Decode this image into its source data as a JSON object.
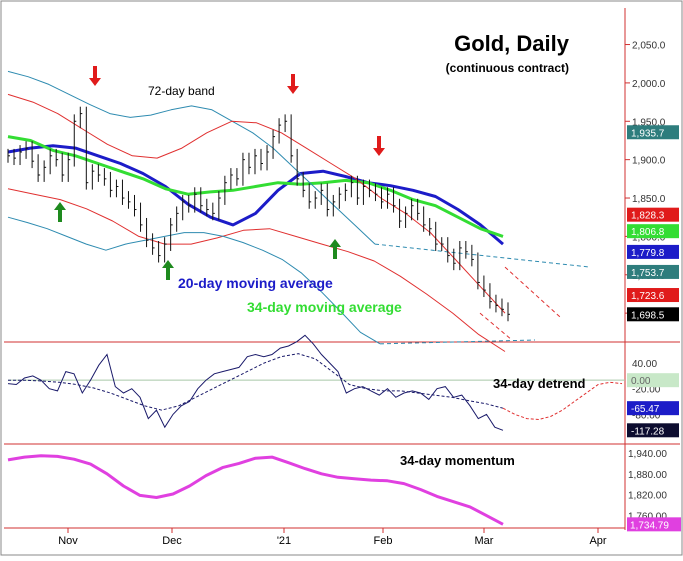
{
  "title": "Gold, Daily",
  "subtitle": "(continuous contract)",
  "colors": {
    "band_outer": "#2e8bb0",
    "band_inner": "#e03030",
    "ma20": "#1c1cc8",
    "ma34": "#33dd33",
    "price": "#111111",
    "momentum": "#e040e0",
    "arrow_down": "#e01b1b",
    "arrow_up": "#1e8a1e",
    "axis": "#d03030"
  },
  "chart_data": [
    {
      "type": "line",
      "panel": "price",
      "x_tick_labels": [
        "Nov",
        "Dec",
        "'21",
        "Feb",
        "Mar",
        "Apr"
      ],
      "y_ticks": [
        2050,
        2000,
        1950,
        1900,
        1850,
        1800,
        1750,
        1700
      ],
      "y_tick_labels": [
        "2,050.0",
        "2,000.0",
        "1,950.0",
        "1,900.0",
        "1,850.0",
        "1,800.0",
        "1,750.0",
        "1,700.0"
      ],
      "ylim": [
        1665,
        2095
      ],
      "annotations": [
        "72-day band",
        "20-day moving average",
        "34-day moving average"
      ],
      "price_tags": [
        {
          "label": "1,935.7",
          "value": 1935.7,
          "color": "#2e7d7d"
        },
        {
          "label": "1,828.3",
          "value": 1828.3,
          "color": "#e01b1b"
        },
        {
          "label": "1,806.8",
          "value": 1806.8,
          "color": "#33dd33"
        },
        {
          "label": "1,779.8",
          "value": 1779.8,
          "color": "#1c1cc8"
        },
        {
          "label": "1,753.7",
          "value": 1753.7,
          "color": "#2e7d7d"
        },
        {
          "label": "1,723.6",
          "value": 1723.6,
          "color": "#e01b1b"
        },
        {
          "label": "1,698.5",
          "value": 1698.5,
          "color": "#000000"
        }
      ],
      "series": [
        {
          "name": "20-day moving average",
          "color": "#1c1cc8",
          "values": [
            1910,
            1915,
            1918,
            1915,
            1905,
            1895,
            1882,
            1865,
            1842,
            1825,
            1815,
            1830,
            1860,
            1882,
            1885,
            1878,
            1870,
            1866,
            1860,
            1852,
            1835,
            1815,
            1790
          ]
        },
        {
          "name": "34-day moving average",
          "color": "#33dd33",
          "values": [
            1930,
            1925,
            1912,
            1905,
            1895,
            1885,
            1875,
            1862,
            1855,
            1858,
            1860,
            1865,
            1870,
            1868,
            1870,
            1873,
            1870,
            1860,
            1848,
            1840,
            1825,
            1810,
            1800
          ]
        },
        {
          "name": "72-day band (outer upper)",
          "color": "#2e8bb0",
          "values": [
            2015,
            2008,
            1998,
            1985,
            1972,
            1960,
            1955,
            1958,
            1965,
            1970,
            1965,
            1950,
            1935,
            1915,
            1890,
            1865,
            1840,
            1815,
            1790
          ]
        },
        {
          "name": "72-day band (inner upper)",
          "color": "#e03030",
          "values": [
            1985,
            1975,
            1960,
            1940,
            1920,
            1905,
            1902,
            1915,
            1935,
            1950,
            1948,
            1935,
            1915,
            1895,
            1875,
            1850,
            1830,
            1805,
            1770,
            1735,
            1700
          ]
        },
        {
          "name": "72-day band (inner lower)",
          "color": "#e03030",
          "values": [
            1862,
            1855,
            1848,
            1836,
            1820,
            1800,
            1790,
            1790,
            1798,
            1808,
            1810,
            1800,
            1790,
            1780,
            1768,
            1748,
            1725,
            1700,
            1672,
            1650
          ]
        },
        {
          "name": "72-day band (outer lower)",
          "color": "#2e8bb0",
          "values": [
            1825,
            1818,
            1810,
            1800,
            1790,
            1782,
            1790,
            1795,
            1800,
            1805,
            1805,
            1800,
            1792,
            1782,
            1770,
            1752,
            1728,
            1702,
            1675,
            1660
          ]
        },
        {
          "name": "Daily price (closes)",
          "color": "#111111",
          "values": [
            1905,
            1902,
            1910,
            1915,
            1898,
            1880,
            1890,
            1905,
            1900,
            1880,
            1900,
            1950,
            1960,
            1870,
            1885,
            1880,
            1875,
            1860,
            1865,
            1850,
            1845,
            1835,
            1815,
            1795,
            1785,
            1775,
            1790,
            1815,
            1830,
            1845,
            1840,
            1855,
            1840,
            1835,
            1830,
            1850,
            1870,
            1880,
            1875,
            1900,
            1890,
            1905,
            1895,
            1910,
            1930,
            1945,
            1950,
            1905,
            1875,
            1860,
            1845,
            1850,
            1860,
            1835,
            1845,
            1855,
            1860,
            1870,
            1850,
            1865,
            1860,
            1855,
            1845,
            1855,
            1840,
            1820,
            1830,
            1840,
            1830,
            1815,
            1810,
            1790,
            1790,
            1775,
            1765,
            1785,
            1780,
            1770,
            1740,
            1730,
            1715,
            1710,
            1705,
            1698.5
          ]
        }
      ]
    },
    {
      "type": "line",
      "panel": "detrend",
      "title": "34-day detrend",
      "y_tick_labels": [
        "40.00",
        "-20.00",
        "-80.00"
      ],
      "ylim": [
        -140,
        80
      ],
      "tags": [
        {
          "label": "0.00",
          "value": 0,
          "color": "#c8e8c8"
        },
        {
          "label": "-65.47",
          "value": -65.47,
          "color": "#1c1cc8"
        },
        {
          "label": "-117.28",
          "value": -117.28,
          "color": "#0d0d30"
        }
      ],
      "series": [
        {
          "name": "34-day detrend",
          "color": "#1a1a6a",
          "values": [
            -8,
            -10,
            5,
            10,
            0,
            -20,
            -25,
            20,
            15,
            -30,
            0,
            35,
            60,
            -15,
            -30,
            -20,
            -40,
            -90,
            -70,
            -110,
            -80,
            -60,
            -50,
            -20,
            0,
            15,
            20,
            25,
            30,
            55,
            60,
            55,
            60,
            75,
            80,
            90,
            105,
            85,
            60,
            40,
            20,
            -30,
            -20,
            -15,
            -25,
            -35,
            -20,
            -40,
            -30,
            -25,
            -30,
            -45,
            -20,
            -15,
            -40,
            -35,
            -60,
            -90,
            -80,
            -110,
            -117.28
          ]
        },
        {
          "name": "detrend smoothed",
          "color": "#1a1a6a",
          "values": [
            0,
            0,
            -2,
            -5,
            -10,
            -18,
            -30,
            -45,
            -60,
            -70,
            -60,
            -40,
            -20,
            0,
            20,
            40,
            55,
            62,
            50,
            20,
            -10,
            -20,
            -25,
            -25,
            -30,
            -35,
            -40,
            -48,
            -55,
            -65.47
          ]
        },
        {
          "name": "detrend projection",
          "color": "#e03030",
          "values": [
            -65.47,
            -80,
            -90,
            -92,
            -85,
            -70,
            -50,
            -30,
            -10,
            -5,
            -8
          ]
        }
      ]
    },
    {
      "type": "line",
      "panel": "momentum",
      "title": "34-day momentum",
      "y_tick_labels": [
        "1,940.00",
        "1,880.00",
        "1,820.00",
        "1,760.00"
      ],
      "ylim": [
        1730,
        1960
      ],
      "tags": [
        {
          "label": "1,734.79",
          "value": 1734.79,
          "color": "#e040e0"
        }
      ],
      "series": [
        {
          "name": "34-day momentum",
          "color": "#e040e0",
          "values": [
            1920,
            1928,
            1932,
            1930,
            1922,
            1908,
            1880,
            1845,
            1818,
            1812,
            1822,
            1845,
            1875,
            1898,
            1910,
            1925,
            1928,
            1912,
            1895,
            1880,
            1870,
            1866,
            1862,
            1860,
            1852,
            1835,
            1815,
            1800,
            1785,
            1760,
            1734.79
          ]
        }
      ]
    }
  ]
}
